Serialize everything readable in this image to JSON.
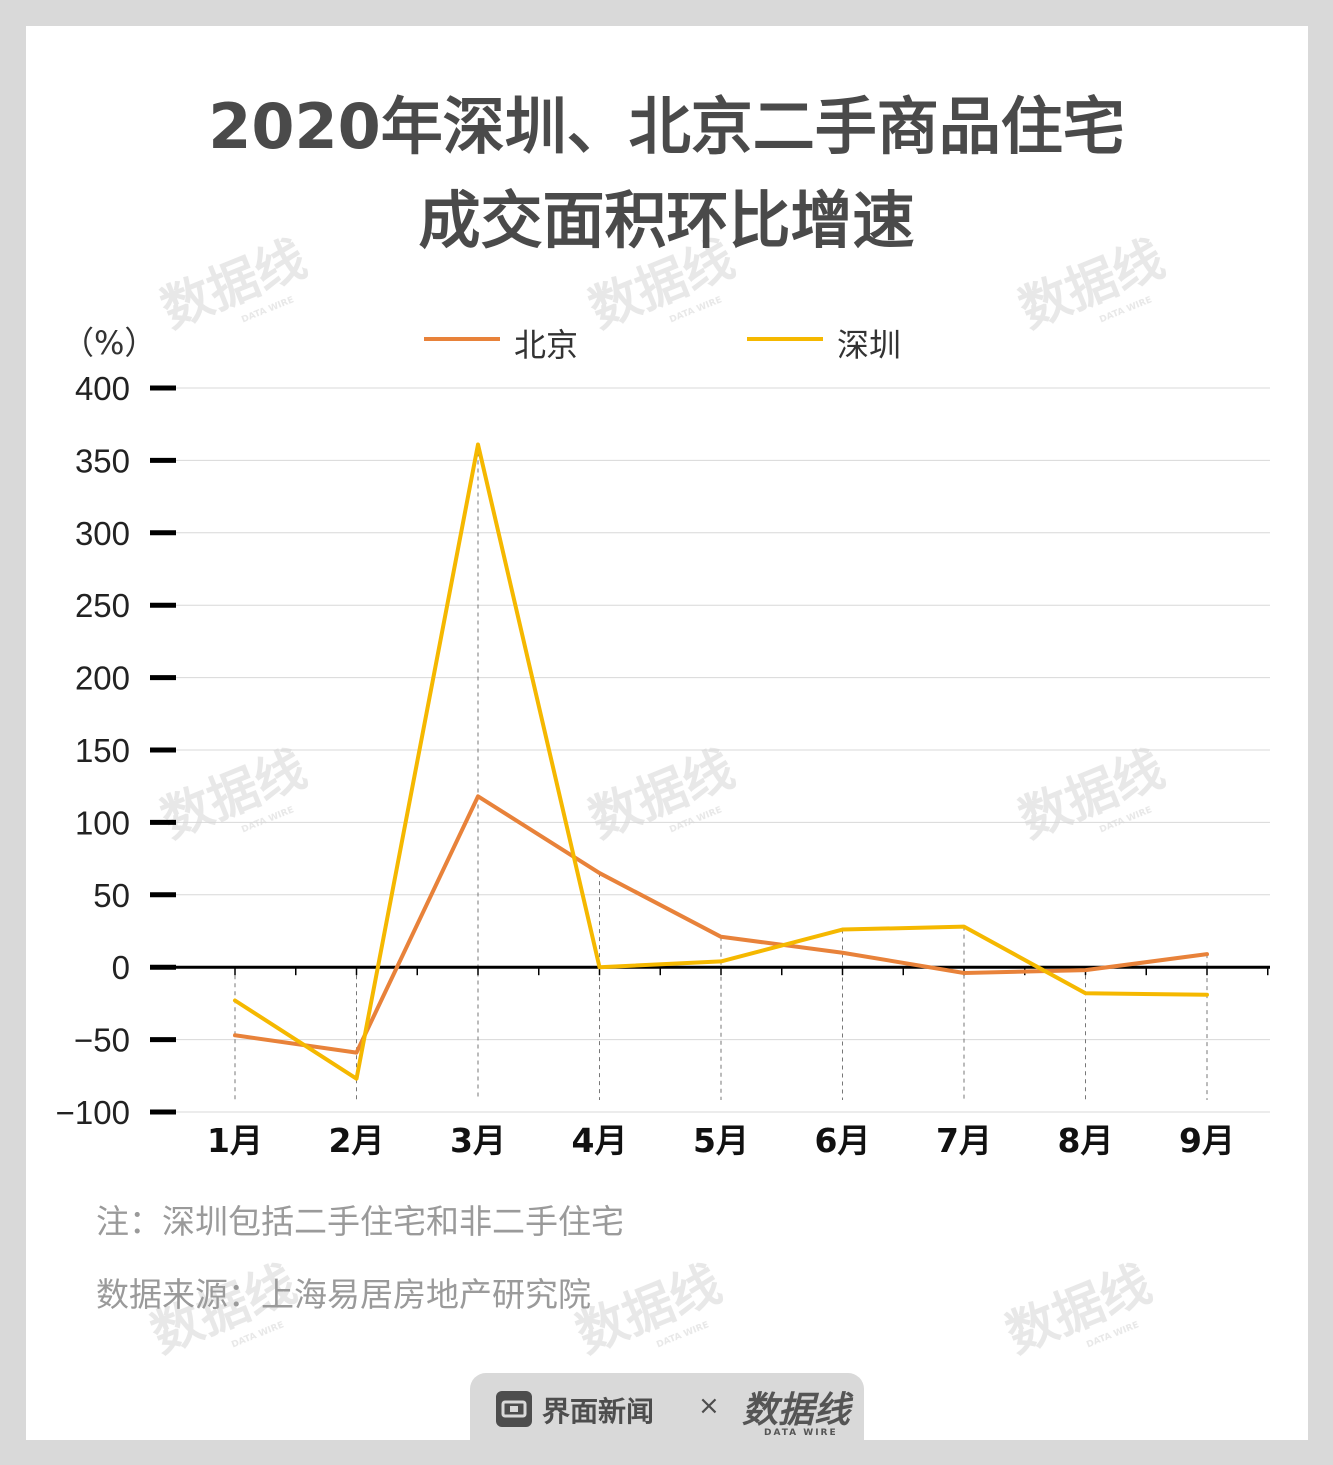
{
  "title": {
    "line1": "2020年深圳、北京二手商品住宅",
    "line2": "成交面积环比增速"
  },
  "unit_label": "（%）",
  "legend": [
    {
      "label": "北京",
      "color": "#E8823A"
    },
    {
      "label": "深圳",
      "color": "#F5B800"
    }
  ],
  "chart_data": {
    "type": "line",
    "x": [
      "1月",
      "2月",
      "3月",
      "4月",
      "5月",
      "6月",
      "7月",
      "8月",
      "9月"
    ],
    "series": [
      {
        "name": "北京",
        "color": "#E8823A",
        "values": [
          -47,
          -59,
          118,
          65,
          21,
          10,
          -4,
          -2,
          9
        ]
      },
      {
        "name": "深圳",
        "color": "#F5B800",
        "values": [
          -23,
          -77,
          361,
          0,
          4,
          26,
          28,
          -18,
          -19
        ]
      }
    ],
    "ylim": [
      -100,
      400
    ],
    "yticks": [
      400,
      350,
      300,
      250,
      200,
      150,
      100,
      50,
      0,
      -50,
      -100
    ],
    "ytick_labels": [
      "400",
      "350",
      "300",
      "250",
      "200",
      "150",
      "100",
      "50",
      "0",
      "−50",
      "−100"
    ],
    "grid": true
  },
  "notes": {
    "note": "注：深圳包括二手住宅和非二手住宅",
    "source": "数据来源：上海易居房地产研究院"
  },
  "footer": {
    "brand": "界面新闻",
    "times": "×",
    "partner": "数据线",
    "partner_sub": "DATA WIRE"
  },
  "watermark": {
    "text": "数据线",
    "sub": "DATA WIRE"
  }
}
